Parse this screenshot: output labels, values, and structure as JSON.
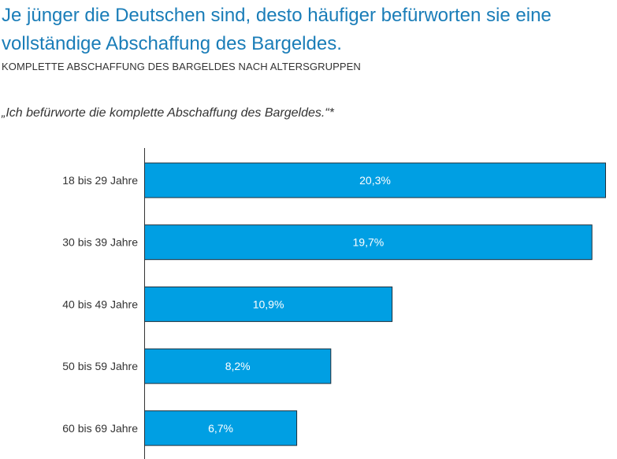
{
  "header": {
    "title": "Je jünger die Deutschen sind, desto häufiger befürworten sie eine vollständige Abschaffung des Bargeldes.",
    "subtitle": "KOMPLETTE ABSCHAFFUNG DES BARGELDES NACH ALTERSGRUPPEN",
    "quote": "„Ich befürworte die komplette Abschaffung des Bargeldes.“*"
  },
  "chart_data": {
    "type": "bar",
    "orientation": "horizontal",
    "categories": [
      "18 bis 29 Jahre",
      "30 bis 39 Jahre",
      "40 bis 49 Jahre",
      "50 bis 59 Jahre",
      "60 bis 69 Jahre"
    ],
    "values": [
      20.3,
      19.7,
      10.9,
      8.2,
      6.7
    ],
    "value_labels": [
      "20,3%",
      "19,7%",
      "10,9%",
      "8,2%",
      "6,7%"
    ],
    "unit": "%",
    "bar_color": "#009fe3",
    "grid": false,
    "legend": "none"
  }
}
